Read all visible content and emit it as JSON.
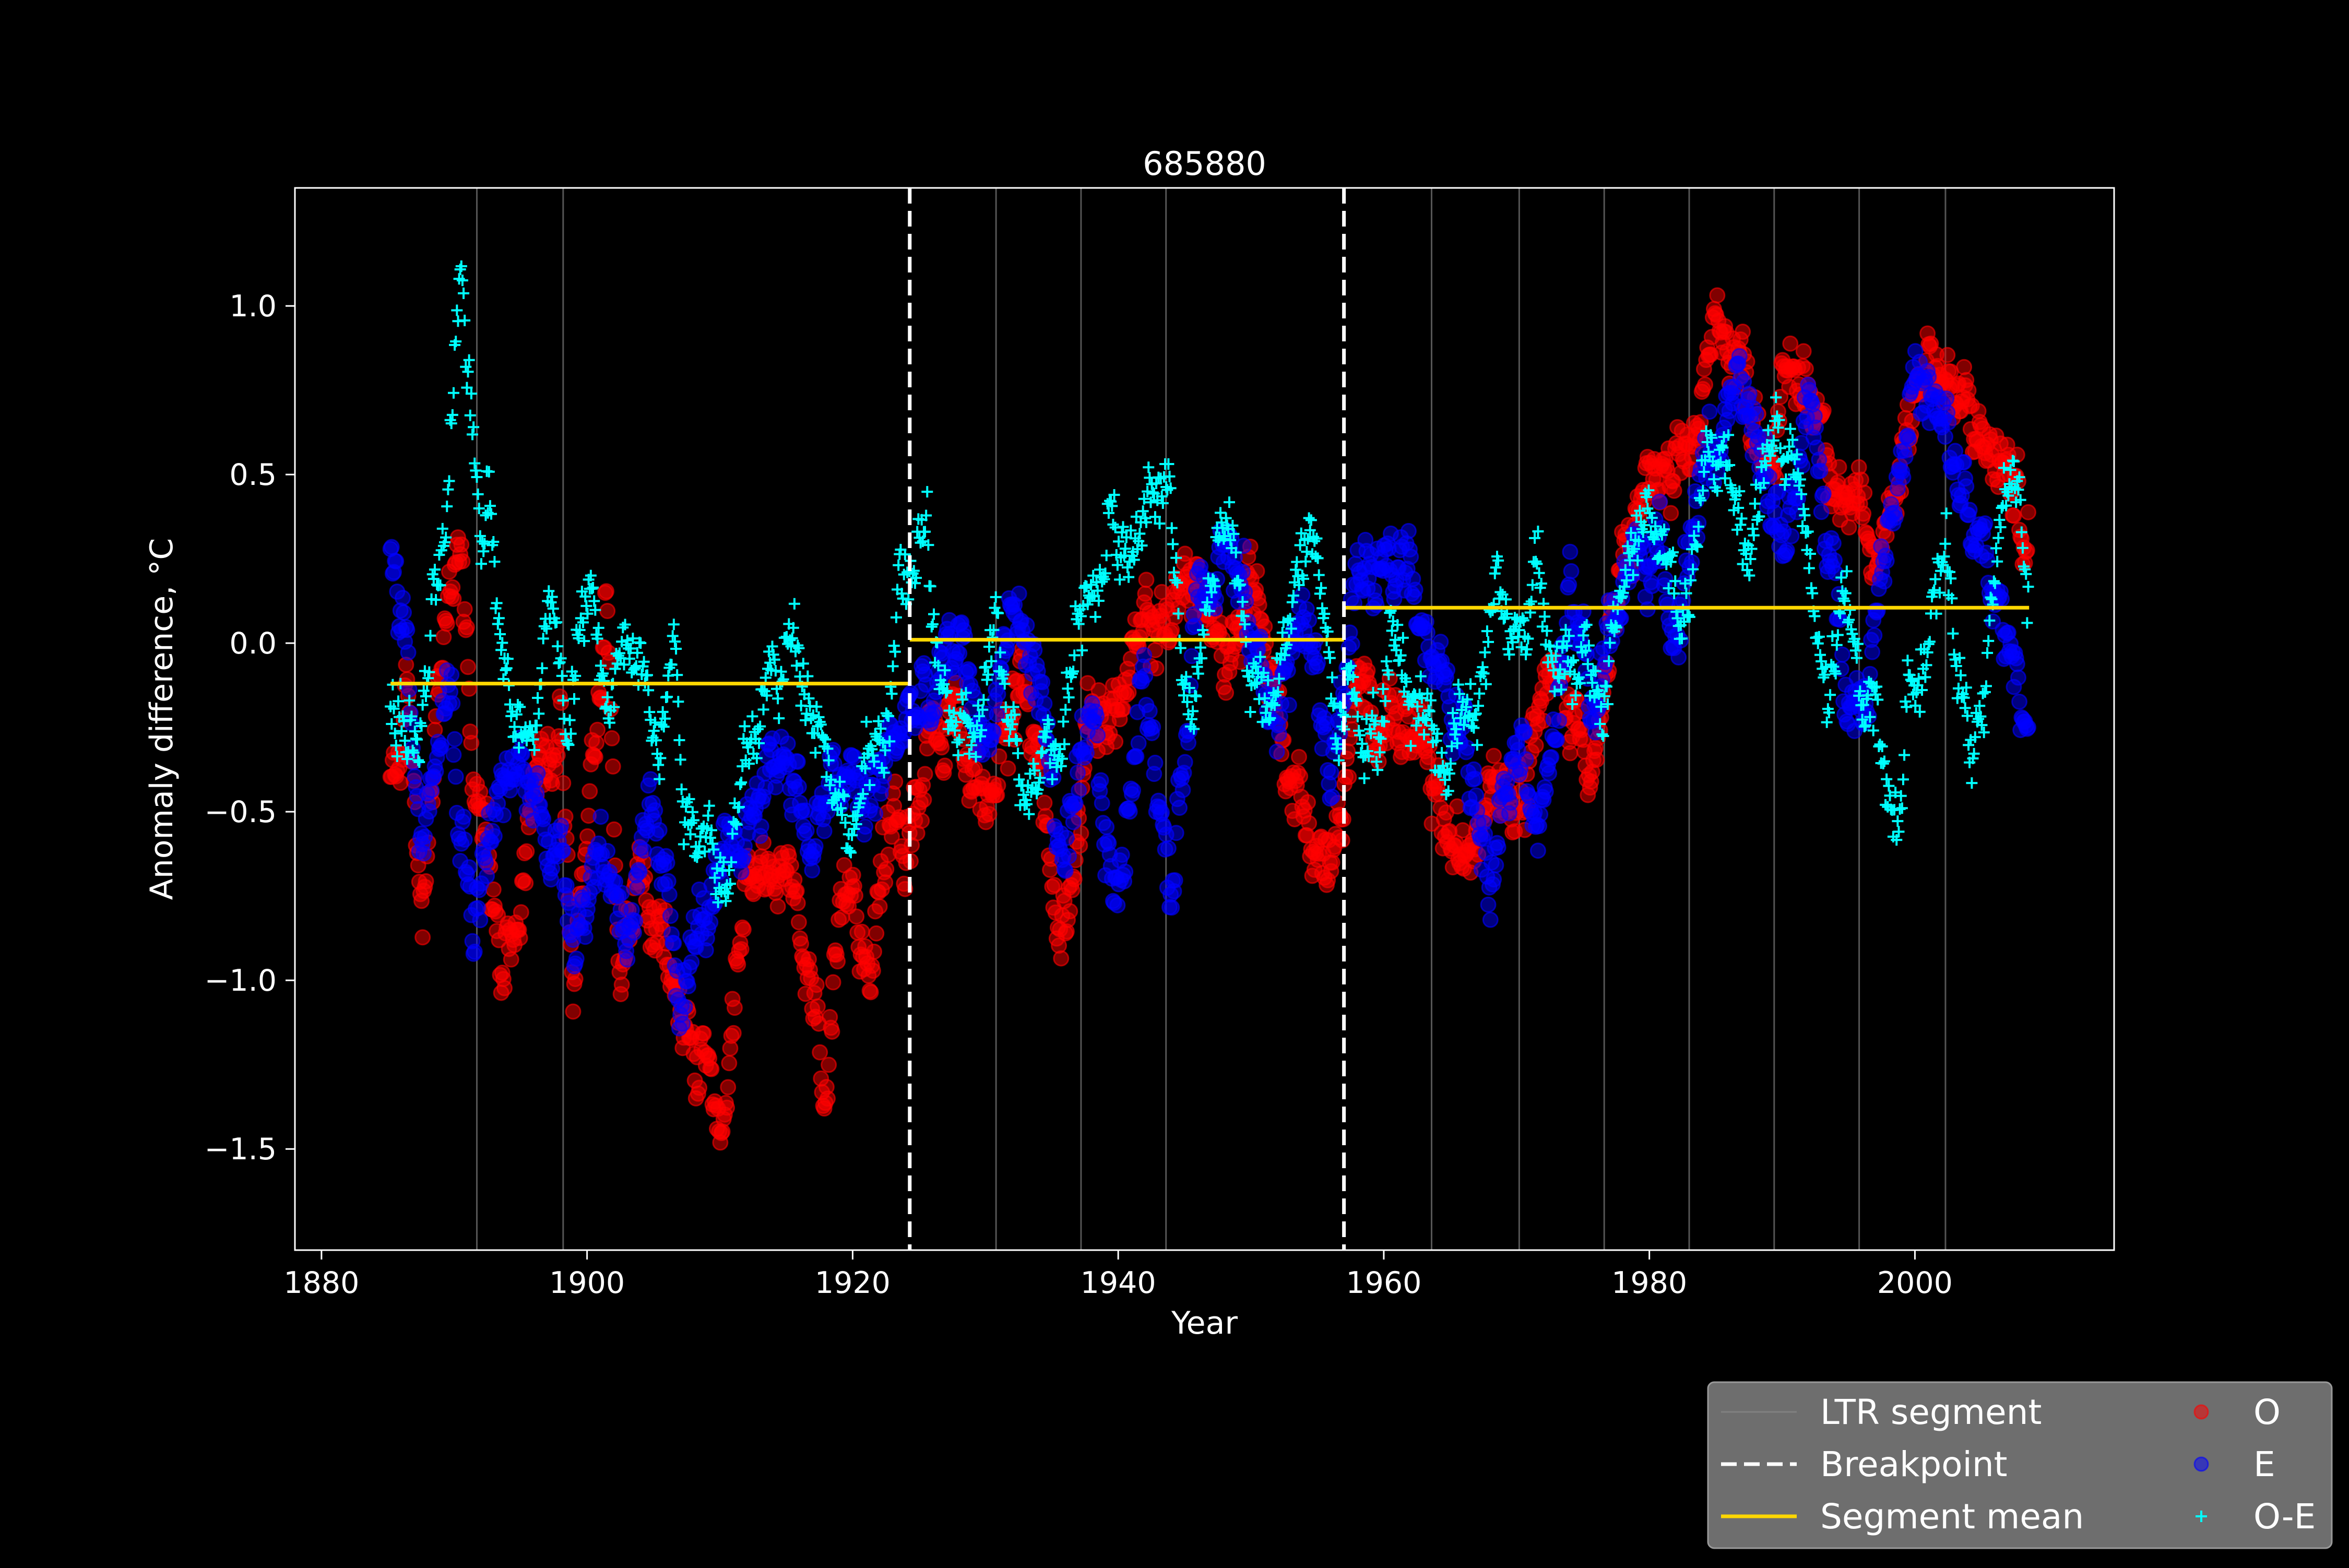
{
  "chart_data": {
    "type": "scatter",
    "title": "685880",
    "xlabel": "Year",
    "ylabel": "Anomaly difference, °C",
    "xlim": [
      1878,
      2015
    ],
    "ylim": [
      -1.8,
      1.35
    ],
    "x_ticks": [
      1880,
      1900,
      1920,
      1940,
      1960,
      1980,
      2000
    ],
    "x_tick_labels": [
      "1880",
      "1900",
      "1920",
      "1940",
      "1960",
      "1980",
      "2000"
    ],
    "y_ticks": [
      1.0,
      0.5,
      0.0,
      -0.5,
      -1.0,
      -1.5
    ],
    "y_tick_labels": [
      "1.0",
      "0.5",
      "0.0",
      "−0.5",
      "−1.0",
      "−1.5"
    ],
    "grid": false,
    "legend_position": "below-right",
    "ltr_segments": [
      1891.7,
      1898.2,
      1930.8,
      1937.2,
      1943.6,
      1963.6,
      1970.2,
      1976.6,
      1983.0,
      1989.4,
      1995.8,
      2002.3
    ],
    "breakpoints": [
      1924.3,
      1957.0
    ],
    "segment_means": [
      {
        "start": 1885.2,
        "end": 1924.3,
        "value": -0.12
      },
      {
        "start": 1924.3,
        "end": 1957.0,
        "value": 0.01
      },
      {
        "start": 1957.0,
        "end": 2008.6,
        "value": 0.105
      }
    ],
    "series": [
      {
        "name": "O",
        "color": "#ff0000",
        "marker": "circle",
        "anchors": [
          [
            1885.2,
            -0.45
          ],
          [
            1886.5,
            -0.2
          ],
          [
            1887.5,
            -0.8
          ],
          [
            1888.5,
            -0.3
          ],
          [
            1889.5,
            0.1
          ],
          [
            1890.5,
            0.3
          ],
          [
            1891.5,
            -0.4
          ],
          [
            1892.5,
            -0.6
          ],
          [
            1893.5,
            -0.9
          ],
          [
            1895,
            -0.7
          ],
          [
            1896.5,
            -0.3
          ],
          [
            1898,
            -0.2
          ],
          [
            1899,
            -1.05
          ],
          [
            1900.5,
            -0.25
          ],
          [
            1901.5,
            0.1
          ],
          [
            1902.5,
            -0.9
          ],
          [
            1904,
            -0.7
          ],
          [
            1905.5,
            -0.9
          ],
          [
            1907,
            -1.1
          ],
          [
            1908.5,
            -1.25
          ],
          [
            1910.5,
            -1.5
          ],
          [
            1912,
            -0.8
          ],
          [
            1914,
            -0.6
          ],
          [
            1916,
            -0.9
          ],
          [
            1918,
            -1.3
          ],
          [
            1920,
            -0.7
          ],
          [
            1921.5,
            -0.9
          ],
          [
            1923,
            -0.5
          ],
          [
            1924.3,
            -0.6
          ],
          [
            1926,
            -0.15
          ],
          [
            1928,
            -0.3
          ],
          [
            1930,
            -0.5
          ],
          [
            1932,
            -0.1
          ],
          [
            1934,
            -0.3
          ],
          [
            1935.5,
            -0.9
          ],
          [
            1936.5,
            -0.6
          ],
          [
            1938,
            -0.2
          ],
          [
            1940,
            -0.2
          ],
          [
            1942,
            0.0
          ],
          [
            1944,
            0.1
          ],
          [
            1946,
            0.2
          ],
          [
            1948,
            -0.1
          ],
          [
            1950,
            0.25
          ],
          [
            1952,
            -0.2
          ],
          [
            1954,
            -0.5
          ],
          [
            1956,
            -0.7
          ],
          [
            1958,
            -0.2
          ],
          [
            1960,
            -0.15
          ],
          [
            1962,
            -0.3
          ],
          [
            1964,
            -0.5
          ],
          [
            1966,
            -0.7
          ],
          [
            1968,
            -0.3
          ],
          [
            1970,
            -0.4
          ],
          [
            1972,
            -0.1
          ],
          [
            1974,
            -0.2
          ],
          [
            1976,
            -0.3
          ],
          [
            1978,
            0.2
          ],
          [
            1980,
            0.5
          ],
          [
            1982,
            0.4
          ],
          [
            1984,
            0.7
          ],
          [
            1985.5,
            1.0
          ],
          [
            1987,
            0.8
          ],
          [
            1989,
            0.6
          ],
          [
            1991,
            0.8
          ],
          [
            1993,
            0.7
          ],
          [
            1995,
            0.4
          ],
          [
            1997,
            0.2
          ],
          [
            1999,
            0.6
          ],
          [
            2001,
            0.9
          ],
          [
            2003,
            0.7
          ],
          [
            2005,
            0.6
          ],
          [
            2007,
            0.5
          ],
          [
            2008.6,
            0.3
          ]
        ]
      },
      {
        "name": "E",
        "color": "#0000ff",
        "marker": "circle",
        "anchors": [
          [
            1885.2,
            0.25
          ],
          [
            1886.5,
            0.0
          ],
          [
            1887.5,
            -0.6
          ],
          [
            1888.5,
            -0.2
          ],
          [
            1889.5,
            0.0
          ],
          [
            1890.5,
            -0.5
          ],
          [
            1891.5,
            -0.8
          ],
          [
            1893,
            -0.5
          ],
          [
            1895,
            -0.4
          ],
          [
            1897,
            -0.5
          ],
          [
            1899,
            -0.8
          ],
          [
            1901,
            -0.6
          ],
          [
            1903,
            -0.8
          ],
          [
            1905,
            -0.6
          ],
          [
            1907,
            -1.0
          ],
          [
            1909,
            -0.8
          ],
          [
            1911,
            -0.7
          ],
          [
            1913,
            -0.4
          ],
          [
            1915,
            -0.3
          ],
          [
            1917,
            -0.6
          ],
          [
            1919,
            -0.4
          ],
          [
            1921,
            -0.5
          ],
          [
            1923,
            -0.3
          ],
          [
            1924.3,
            -0.2
          ],
          [
            1926,
            -0.2
          ],
          [
            1928,
            0.0
          ],
          [
            1930,
            -0.3
          ],
          [
            1932,
            0.1
          ],
          [
            1934,
            -0.1
          ],
          [
            1936,
            -0.7
          ],
          [
            1938,
            -0.3
          ],
          [
            1940,
            -0.8
          ],
          [
            1942,
            0.0
          ],
          [
            1944,
            -0.8
          ],
          [
            1946,
            0.2
          ],
          [
            1948,
            0.35
          ],
          [
            1950,
            0.0
          ],
          [
            1952,
            -0.2
          ],
          [
            1954,
            0.1
          ],
          [
            1956,
            -0.4
          ],
          [
            1958,
            0.2
          ],
          [
            1960,
            0.15
          ],
          [
            1962,
            0.3
          ],
          [
            1964,
            -0.1
          ],
          [
            1966,
            -0.3
          ],
          [
            1968,
            -0.6
          ],
          [
            1970,
            -0.2
          ],
          [
            1972,
            -0.5
          ],
          [
            1974,
            0.1
          ],
          [
            1976,
            -0.2
          ],
          [
            1978,
            0.2
          ],
          [
            1980,
            0.3
          ],
          [
            1982,
            0.1
          ],
          [
            1984,
            0.5
          ],
          [
            1986,
            0.7
          ],
          [
            1988,
            0.6
          ],
          [
            1990,
            0.3
          ],
          [
            1992,
            0.7
          ],
          [
            1994,
            0.1
          ],
          [
            1996,
            -0.2
          ],
          [
            1998,
            0.4
          ],
          [
            2000,
            0.8
          ],
          [
            2002,
            0.6
          ],
          [
            2004,
            0.4
          ],
          [
            2006,
            0.1
          ],
          [
            2008.6,
            -0.2
          ]
        ]
      },
      {
        "name": "O-E",
        "color": "#00ffff",
        "marker": "plus",
        "anchors": [
          [
            1885.2,
            -0.2
          ],
          [
            1886.5,
            -0.25
          ],
          [
            1887.5,
            -0.3
          ],
          [
            1888.5,
            0.1
          ],
          [
            1889.5,
            0.3
          ],
          [
            1890.5,
            1.1
          ],
          [
            1891.2,
            0.75
          ],
          [
            1892,
            0.35
          ],
          [
            1892.5,
            0.55
          ],
          [
            1893.5,
            0.1
          ],
          [
            1894.5,
            -0.3
          ],
          [
            1895.5,
            -0.2
          ],
          [
            1896.5,
            -0.05
          ],
          [
            1897.5,
            0.2
          ],
          [
            1898.5,
            -0.4
          ],
          [
            1899.5,
            0.1
          ],
          [
            1900.5,
            0.15
          ],
          [
            1901.5,
            -0.3
          ],
          [
            1902.5,
            0.0
          ],
          [
            1903.5,
            -0.05
          ],
          [
            1904.5,
            0.05
          ],
          [
            1905.5,
            -0.3
          ],
          [
            1906.5,
            0.05
          ],
          [
            1907.5,
            -0.5
          ],
          [
            1908.5,
            -0.5
          ],
          [
            1909.5,
            -0.55
          ],
          [
            1910.5,
            -0.7
          ],
          [
            1912,
            -0.4
          ],
          [
            1913,
            -0.2
          ],
          [
            1914,
            -0.1
          ],
          [
            1915.5,
            0.0
          ],
          [
            1917,
            -0.1
          ],
          [
            1918.5,
            -0.35
          ],
          [
            1919.5,
            -0.55
          ],
          [
            1920.5,
            -0.5
          ],
          [
            1921.5,
            -0.35
          ],
          [
            1922.5,
            -0.25
          ],
          [
            1923.5,
            0.2
          ],
          [
            1924.5,
            0.1
          ],
          [
            1925.5,
            0.4
          ],
          [
            1926.5,
            -0.15
          ],
          [
            1927.5,
            -0.2
          ],
          [
            1928.5,
            -0.35
          ],
          [
            1929.5,
            -0.25
          ],
          [
            1930.5,
            0.0
          ],
          [
            1931.5,
            -0.2
          ],
          [
            1932.5,
            -0.3
          ],
          [
            1933.5,
            -0.4
          ],
          [
            1934.5,
            -0.15
          ],
          [
            1935.5,
            -0.35
          ],
          [
            1936.5,
            0.0
          ],
          [
            1937.5,
            0.2
          ],
          [
            1938.5,
            0.1
          ],
          [
            1939.5,
            0.5
          ],
          [
            1940.5,
            0.2
          ],
          [
            1941.5,
            0.3
          ],
          [
            1942.5,
            0.45
          ],
          [
            1943.5,
            0.5
          ],
          [
            1944.5,
            0.2
          ],
          [
            1945.5,
            -0.3
          ],
          [
            1946.5,
            0.0
          ],
          [
            1947.5,
            0.3
          ],
          [
            1948.5,
            0.4
          ],
          [
            1949.5,
            0.0
          ],
          [
            1950.5,
            -0.1
          ],
          [
            1951.5,
            -0.3
          ],
          [
            1952.5,
            0.0
          ],
          [
            1953.5,
            0.2
          ],
          [
            1954.5,
            0.25
          ],
          [
            1955.5,
            0.2
          ],
          [
            1956.5,
            -0.3
          ],
          [
            1957.5,
            0.0
          ],
          [
            1958.5,
            -0.2
          ],
          [
            1959.5,
            -0.3
          ],
          [
            1960.5,
            0.05
          ],
          [
            1961.5,
            -0.1
          ],
          [
            1962.5,
            -0.15
          ],
          [
            1963.5,
            -0.2
          ],
          [
            1964.5,
            -0.4
          ],
          [
            1965.5,
            -0.1
          ],
          [
            1966.5,
            -0.2
          ],
          [
            1967.5,
            -0.1
          ],
          [
            1968.5,
            0.2
          ],
          [
            1969.5,
            0.05
          ],
          [
            1970.5,
            0.0
          ],
          [
            1971.5,
            0.3
          ],
          [
            1972.5,
            0.05
          ],
          [
            1973.5,
            -0.05
          ],
          [
            1974.5,
            -0.15
          ],
          [
            1975.5,
            -0.1
          ],
          [
            1976.5,
            -0.2
          ],
          [
            1977.5,
            0.1
          ],
          [
            1978.5,
            0.25
          ],
          [
            1979.5,
            0.4
          ],
          [
            1980.5,
            0.3
          ],
          [
            1981.5,
            0.2
          ],
          [
            1982.5,
            0.05
          ],
          [
            1983.5,
            0.3
          ],
          [
            1984.5,
            0.5
          ],
          [
            1985.5,
            0.55
          ],
          [
            1986.5,
            0.45
          ],
          [
            1987.5,
            0.3
          ],
          [
            1988.5,
            0.5
          ],
          [
            1989.5,
            0.65
          ],
          [
            1990.5,
            0.55
          ],
          [
            1991.5,
            0.4
          ],
          [
            1992.5,
            0.0
          ],
          [
            1993.5,
            -0.2
          ],
          [
            1994.5,
            0.1
          ],
          [
            1995.5,
            -0.05
          ],
          [
            1996.5,
            -0.1
          ],
          [
            1997.5,
            -0.3
          ],
          [
            1998.5,
            -0.55
          ],
          [
            1999.5,
            -0.2
          ],
          [
            2000.5,
            0.05
          ],
          [
            2001.5,
            0.1
          ],
          [
            2002.5,
            0.2
          ],
          [
            2003.5,
            -0.1
          ],
          [
            2004.5,
            -0.35
          ],
          [
            2005.5,
            0.0
          ],
          [
            2006.5,
            0.35
          ],
          [
            2007.5,
            0.45
          ],
          [
            2008.6,
            0.2
          ]
        ]
      }
    ],
    "legend": [
      {
        "key": "ltr",
        "label": "LTR segment",
        "color": "#808080",
        "style": "line"
      },
      {
        "key": "bp",
        "label": "Breakpoint",
        "color": "#ffffff",
        "style": "dashed"
      },
      {
        "key": "mean",
        "label": "Segment mean",
        "color": "#ffd700",
        "style": "line"
      },
      {
        "key": "o",
        "label": "O",
        "color": "#ff0000",
        "style": "circle"
      },
      {
        "key": "e",
        "label": "E",
        "color": "#0000ff",
        "style": "circle"
      },
      {
        "key": "oe",
        "label": "O-E",
        "color": "#00ffff",
        "style": "plus"
      }
    ]
  }
}
